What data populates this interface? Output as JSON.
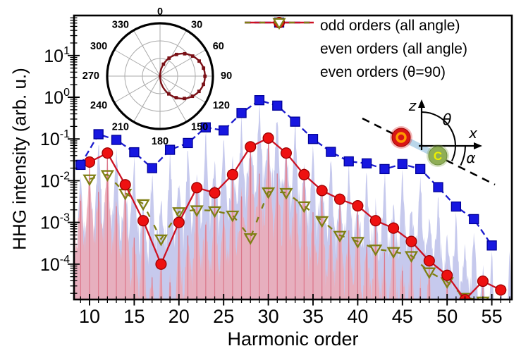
{
  "chart_data": {
    "type": "line",
    "title": "",
    "xlabel": "Harmonic order",
    "ylabel": "HHG intensity (arb. u.)",
    "x_axis": {
      "scale": "linear",
      "range": [
        8.27,
        57.24
      ],
      "major_ticks": [
        10,
        15,
        20,
        25,
        30,
        35,
        40,
        45,
        50,
        55
      ],
      "minor_step": 1
    },
    "y_axis": {
      "scale": "log",
      "range_log10": [
        -4.85,
        1.95
      ],
      "major_tick_exponents": [
        1,
        0,
        -1,
        -2,
        -3,
        -4
      ]
    },
    "grid": false,
    "legend_position": "top-right-inside",
    "series": [
      {
        "name": "odd orders (all angle)",
        "marker": "square",
        "color": "#1a1acd",
        "marker_fill": "#1717e0",
        "marker_edge": "#000099",
        "line": "dashed",
        "dash": "9 5",
        "x": [
          9,
          11,
          13,
          15,
          17,
          19,
          21,
          23,
          25,
          27,
          29,
          31,
          33,
          35,
          37,
          39,
          41,
          43,
          45,
          47,
          49,
          51,
          53,
          55
        ],
        "y": [
          0.024,
          0.13,
          0.095,
          0.048,
          0.02,
          0.055,
          0.08,
          0.19,
          0.16,
          0.42,
          0.85,
          0.63,
          0.26,
          0.1,
          0.049,
          0.029,
          0.026,
          0.019,
          0.025,
          0.019,
          0.007,
          0.0024,
          0.0012,
          0.00028
        ]
      },
      {
        "name": "even orders (all angle)",
        "marker": "circle",
        "color": "#cc1122",
        "marker_fill": "#ee1111",
        "marker_edge": "#990000",
        "line": "solid",
        "dash": null,
        "x": [
          10,
          12,
          14,
          16,
          18,
          20,
          22,
          24,
          26,
          28,
          30,
          32,
          34,
          36,
          38,
          40,
          42,
          44,
          46,
          48,
          50,
          52,
          54,
          56
        ],
        "y": [
          0.028,
          0.046,
          0.008,
          0.0011,
          0.0001,
          0.001,
          0.0068,
          0.0051,
          0.014,
          0.065,
          0.105,
          0.046,
          0.014,
          0.0058,
          0.0036,
          0.0025,
          0.0011,
          0.00073,
          0.00035,
          0.00012,
          5.4e-05,
          1.4e-05,
          3.9e-05,
          2.4e-05
        ]
      },
      {
        "name": "even orders (θ=90)",
        "marker": "triangle-down-open",
        "color": "#7f7f14",
        "marker_fill": "none",
        "marker_edge": "#7f7f14",
        "line": "dashed",
        "dash": "8 13",
        "x": [
          10,
          12,
          14,
          16,
          18,
          20,
          22,
          24,
          26,
          28,
          30,
          32,
          34,
          36,
          38,
          40,
          42,
          44,
          46,
          48,
          50,
          52,
          54
        ],
        "y": [
          0.011,
          0.014,
          0.005,
          0.0028,
          0.0004,
          0.0018,
          0.002,
          0.0019,
          0.0015,
          0.00043,
          0.0054,
          0.0052,
          0.0025,
          0.0011,
          0.00049,
          0.00035,
          0.00023,
          0.0002,
          0.00016,
          6.5e-05,
          3.8e-05,
          1.6e-05,
          1.3e-05
        ]
      }
    ],
    "background_spectra": [
      {
        "name": "continuous spectrum (odd-order peaks)",
        "fill": "#c6c9ed",
        "opacity": 1.0,
        "anchor_series": 0,
        "parity": 1,
        "peak_offset_log": -0.08,
        "sub_spike_drop_log": 0.8,
        "valley_drop_log": 1.55
      },
      {
        "name": "continuous spectrum (even-order peaks)",
        "fill": "#edaab5",
        "opacity": 0.84,
        "anchor_series": 1,
        "parity": 0,
        "peak_offset_log": 0.18,
        "sub_spike_drop_log": 0.9,
        "valley_drop_log": 1.45,
        "core_line_color": "#d97085"
      }
    ],
    "noise_seed": 1337,
    "inset_polar": {
      "angle_labels": [
        "0",
        "30",
        "60",
        "90",
        "120",
        "150",
        "180",
        "210",
        "240",
        "270",
        "300",
        "330"
      ],
      "n_grid_rings": 2,
      "lobe_direction_deg": 90,
      "lobe_relative_radius": 0.85,
      "lobe_color": "#7a1016",
      "grid_color": "#aaaaaa"
    },
    "inset_molecule": {
      "axis_labels": {
        "vertical": "z",
        "horizontal": "x"
      },
      "angle_labels": {
        "theta": "θ",
        "alpha": "α"
      },
      "atoms": [
        {
          "label": "O",
          "fill": "#d81515",
          "edge": "#a00000",
          "ring": "#ff9900"
        },
        {
          "label": "C",
          "fill": "#8fae57",
          "edge": "#6d8c3c",
          "ring": "#eef000"
        }
      ],
      "bond_color": "#b9d6ea",
      "orientation_line_style": "dashed"
    }
  }
}
